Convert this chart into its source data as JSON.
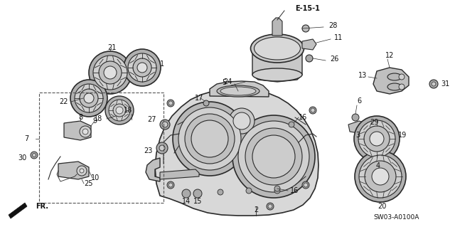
{
  "bg_color": "#ffffff",
  "fig_width": 6.4,
  "fig_height": 3.19,
  "dpi": 100,
  "diagram_code": "SW03-A0100A",
  "ref_code": "E-15-1",
  "line_color": "#2a2a2a",
  "gray_fill": "#c8c8c8",
  "light_fill": "#e8e8e8",
  "dark_fill": "#888888"
}
